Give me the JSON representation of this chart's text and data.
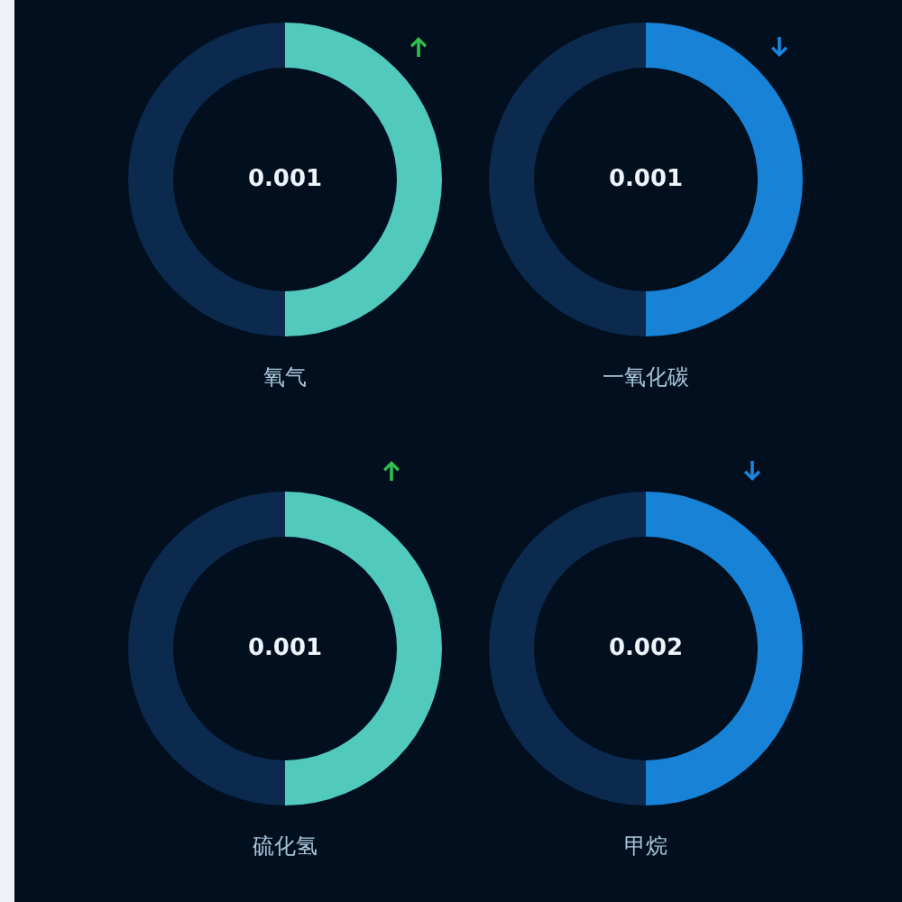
{
  "chart_data": [
    {
      "type": "donut",
      "title": "氧气",
      "categories": [
        null,
        null
      ],
      "values": [
        50,
        50
      ],
      "colors": [
        "#52c9bd",
        "#0c2a4e"
      ],
      "annotations": [
        "0.001"
      ]
    },
    {
      "type": "donut",
      "title": "一氧化碳",
      "categories": [
        null,
        null
      ],
      "values": [
        50,
        50
      ],
      "colors": [
        "#1782d6",
        "#0c2a4e"
      ],
      "annotations": [
        "0.001"
      ]
    },
    {
      "type": "donut",
      "title": "硫化氢",
      "categories": [
        null,
        null
      ],
      "values": [
        50,
        50
      ],
      "colors": [
        "#52c9bd",
        "#0c2a4e"
      ],
      "annotations": [
        "0.001"
      ]
    },
    {
      "type": "donut",
      "title": "甲烷",
      "categories": [
        null,
        null
      ],
      "values": [
        50,
        50
      ],
      "colors": [
        "#1782d6",
        "#0c2a4e"
      ],
      "annotations": [
        "0.002"
      ]
    }
  ]
}
